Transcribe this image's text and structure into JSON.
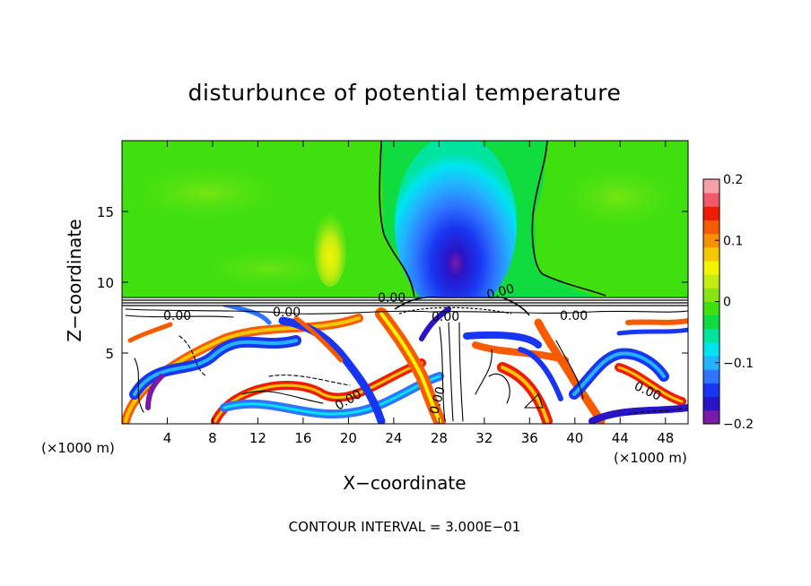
{
  "chart_data": {
    "type": "heatmap",
    "title": "disturbunce of potential temperature",
    "xlabel": "X−coordinate",
    "ylabel": "Z−coordinate",
    "x_unit_left": "(×1000 m)",
    "x_unit_right": "(×1000 m)",
    "xlim": [
      0,
      50
    ],
    "ylim": [
      0,
      20
    ],
    "x_ticks": [
      4,
      8,
      12,
      16,
      20,
      24,
      28,
      32,
      36,
      40,
      44,
      48
    ],
    "x_tick_labels": [
      "4",
      "8",
      "12",
      "16",
      "20",
      "24",
      "28",
      "32",
      "36",
      "40",
      "44",
      "48"
    ],
    "y_ticks": [
      5,
      10,
      15
    ],
    "y_tick_labels": [
      "5",
      "10",
      "15"
    ],
    "colorbar": {
      "range": [
        -0.2,
        0.2
      ],
      "ticks": [
        0.2,
        0.1,
        0,
        -0.1,
        -0.2
      ],
      "tick_labels": [
        "0.2",
        "0.1",
        "0",
        "−0.1",
        "−0.2"
      ],
      "colors": [
        "#7a1aa8",
        "#2a14c8",
        "#1836f0",
        "#2e74ff",
        "#22b4ff",
        "#00e4f0",
        "#00e4a0",
        "#10dc40",
        "#40e010",
        "#86e614",
        "#c4ec10",
        "#f4f400",
        "#f4c800",
        "#f89000",
        "#f85a00",
        "#f01c00",
        "#f05a6a",
        "#f8a0a8"
      ]
    },
    "contour_labels": [
      "0.00",
      "0.00",
      "0.00",
      "0.00",
      "0.00",
      "0.00",
      "0.00",
      "0.00",
      "0.00"
    ],
    "footer": "CONTOUR INTERVAL = 3.000E−01"
  }
}
